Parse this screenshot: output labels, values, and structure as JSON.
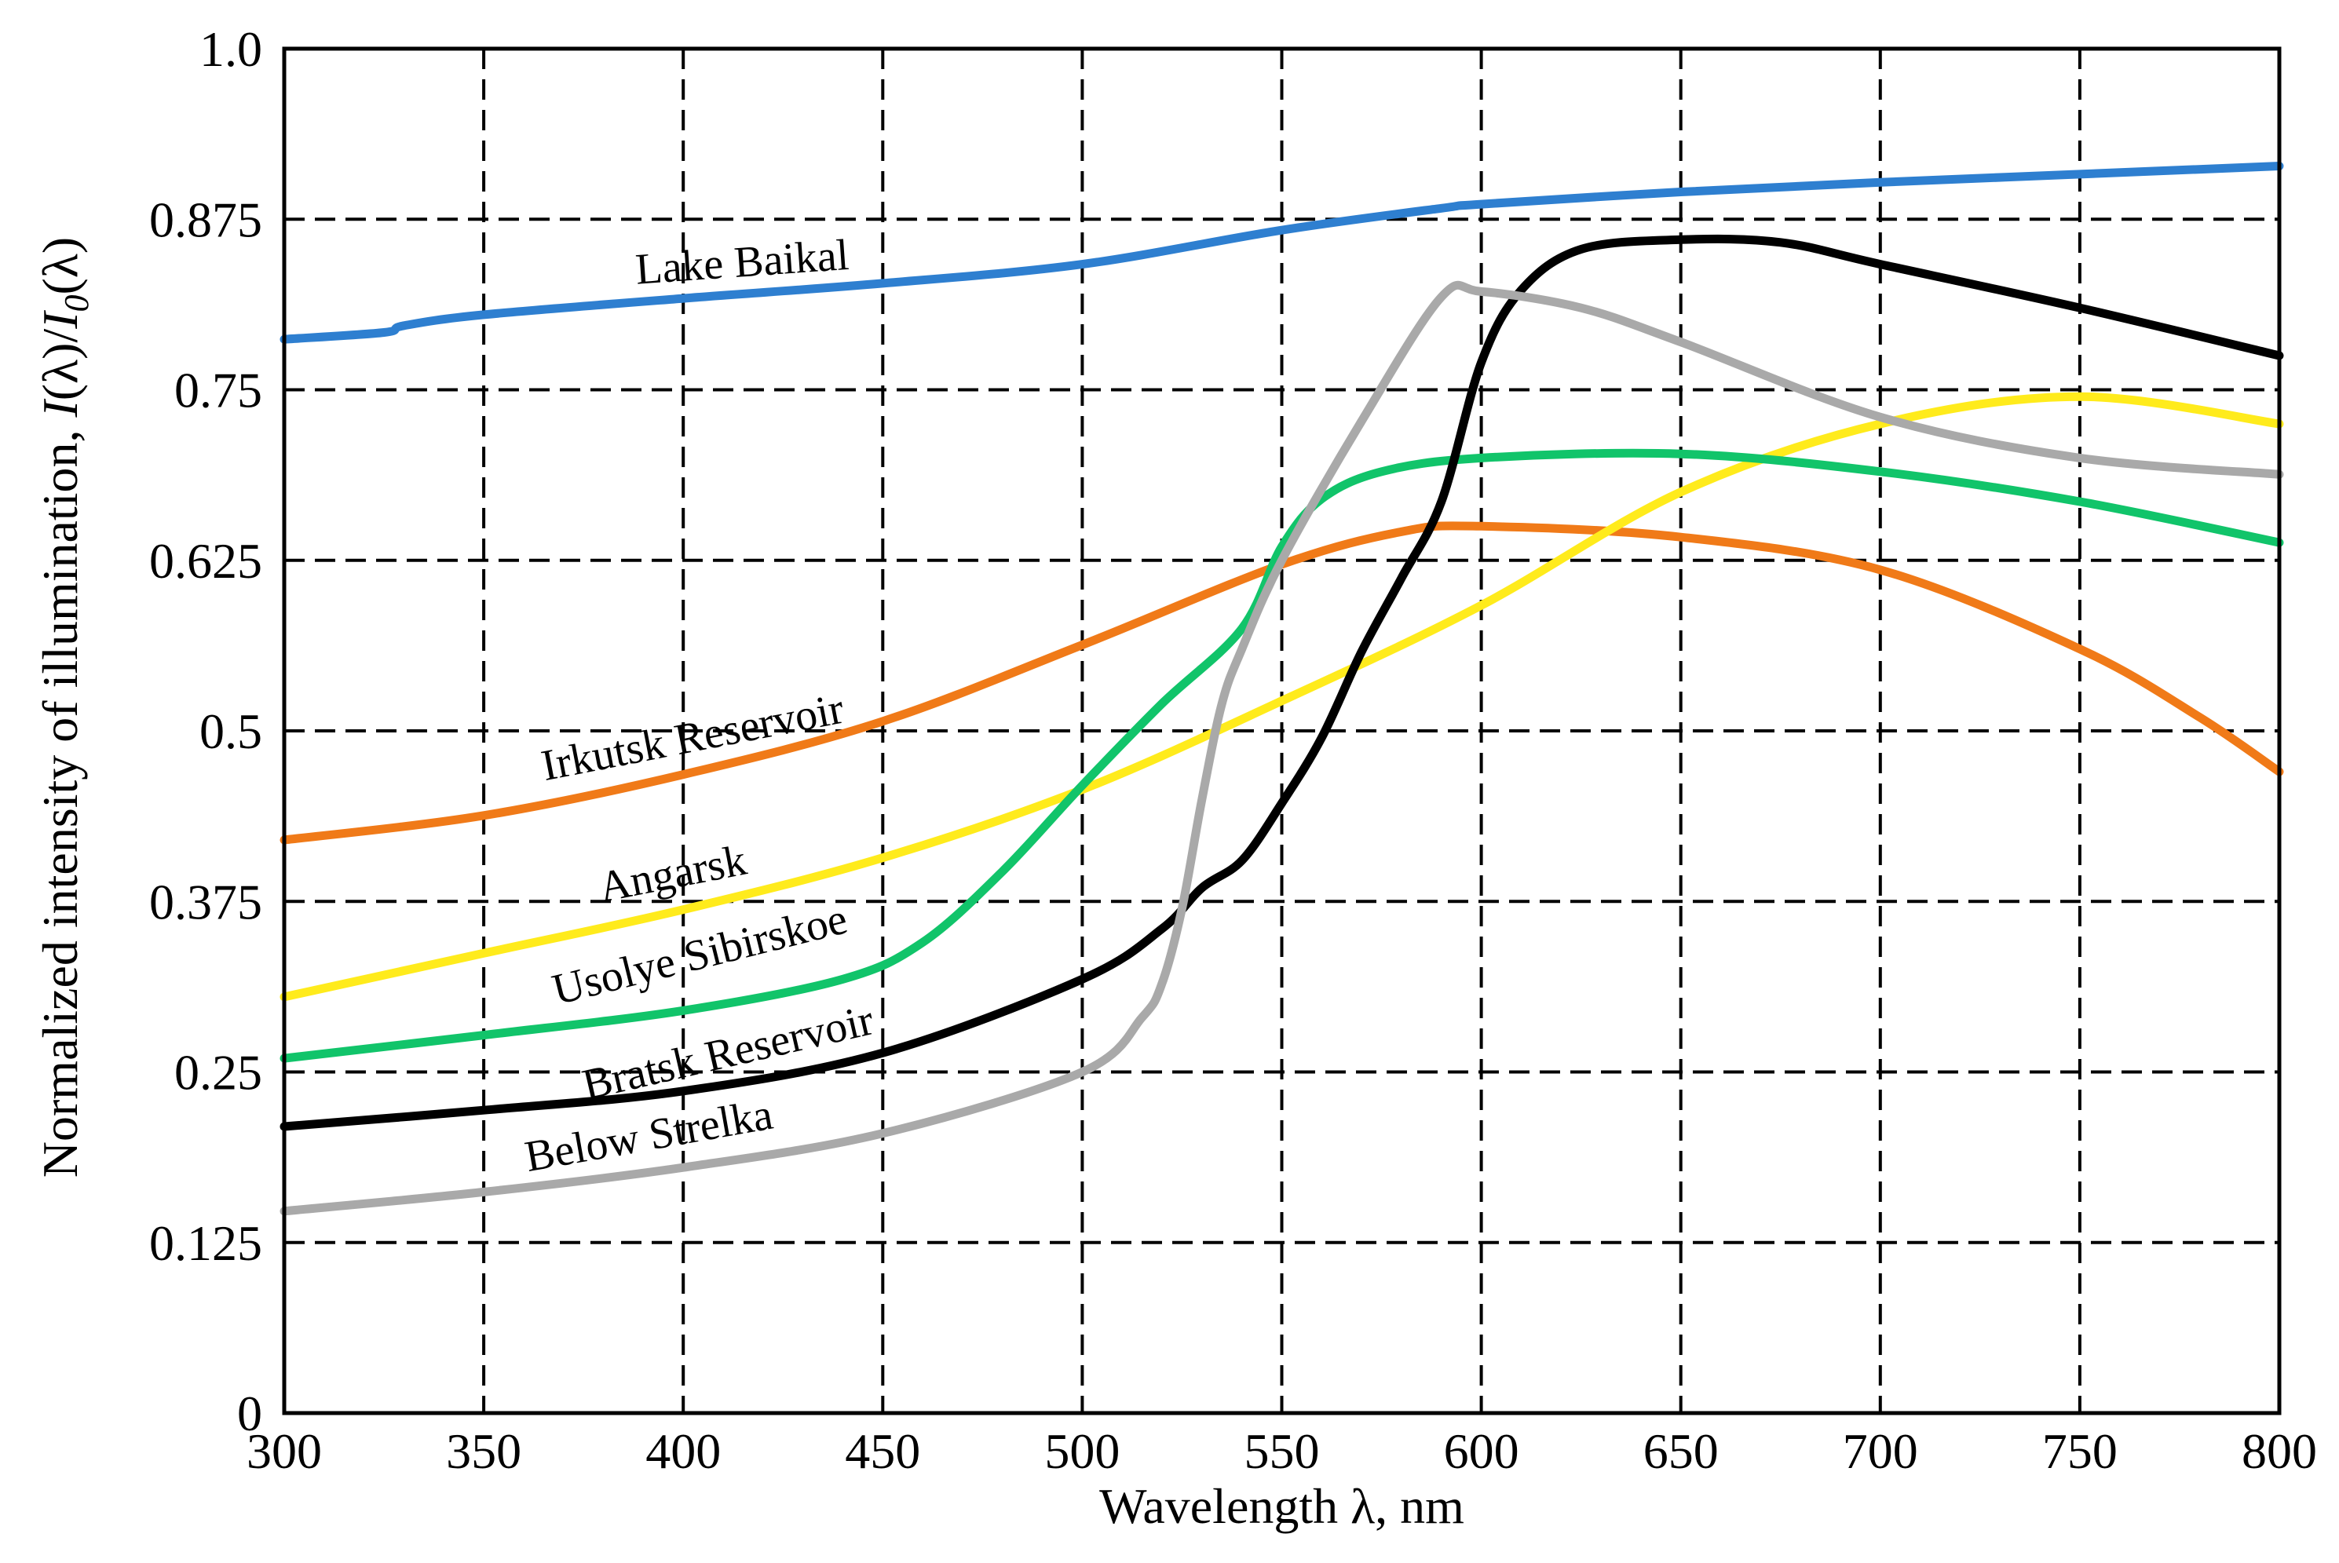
{
  "chart_data": {
    "type": "line",
    "title": "",
    "xlabel": "Wavelength λ, nm",
    "ylabel_parts": [
      "Normalized intensity of illumination, ",
      "I",
      "(λ)/",
      "I",
      "0",
      "(λ)"
    ],
    "xlim": [
      300,
      800
    ],
    "ylim": [
      0,
      1.0
    ],
    "x_ticks": [
      300,
      350,
      400,
      450,
      500,
      550,
      600,
      650,
      700,
      750,
      800
    ],
    "x_tick_labels": [
      "300",
      "350",
      "400",
      "450",
      "500",
      "550",
      "600",
      "650",
      "700",
      "750",
      "800"
    ],
    "y_ticks": [
      0,
      0.125,
      0.25,
      0.375,
      0.5,
      0.625,
      0.75,
      0.875,
      1.0
    ],
    "y_tick_labels": [
      "0",
      "0.125",
      "0.25",
      "0.375",
      "0.5",
      "0.625",
      "0.75",
      "0.875",
      "1.0"
    ],
    "grid": true,
    "series": [
      {
        "name": "Lake Baikal",
        "color": "#2e7fd0",
        "x": [
          300,
          325,
          330,
          350,
          400,
          450,
          500,
          550,
          590,
          600,
          650,
          700,
          750,
          800
        ],
        "y": [
          0.787,
          0.792,
          0.797,
          0.805,
          0.817,
          0.828,
          0.842,
          0.867,
          0.883,
          0.886,
          0.895,
          0.902,
          0.908,
          0.914
        ]
      },
      {
        "name": "Irkutsk Reservoir",
        "color": "#f07a18",
        "x": [
          300,
          350,
          400,
          450,
          500,
          550,
          580,
          600,
          650,
          700,
          750,
          780,
          800
        ],
        "y": [
          0.42,
          0.438,
          0.468,
          0.507,
          0.563,
          0.622,
          0.646,
          0.65,
          0.642,
          0.618,
          0.56,
          0.51,
          0.47
        ]
      },
      {
        "name": "Angarsk",
        "color": "#ffeb1c",
        "x": [
          300,
          350,
          400,
          450,
          500,
          550,
          600,
          650,
          700,
          750,
          800
        ],
        "y": [
          0.305,
          0.337,
          0.369,
          0.407,
          0.457,
          0.522,
          0.592,
          0.675,
          0.725,
          0.745,
          0.725
        ]
      },
      {
        "name": "Usolye Sibirskoe",
        "color": "#11c46a",
        "x": [
          300,
          350,
          400,
          440,
          460,
          480,
          500,
          520,
          540,
          550,
          560,
          575,
          600,
          650,
          700,
          750,
          800
        ],
        "y": [
          0.26,
          0.277,
          0.295,
          0.318,
          0.345,
          0.397,
          0.46,
          0.52,
          0.575,
          0.635,
          0.67,
          0.69,
          0.7,
          0.703,
          0.69,
          0.668,
          0.638
        ]
      },
      {
        "name": "Bratsk Reservoir",
        "color": "#000000",
        "x": [
          300,
          350,
          400,
          450,
          500,
          520,
          530,
          540,
          550,
          560,
          570,
          580,
          590,
          600,
          610,
          625,
          650,
          675,
          700,
          750,
          800
        ],
        "y": [
          0.21,
          0.222,
          0.236,
          0.264,
          0.318,
          0.355,
          0.385,
          0.405,
          0.447,
          0.495,
          0.558,
          0.612,
          0.668,
          0.77,
          0.823,
          0.853,
          0.86,
          0.858,
          0.842,
          0.81,
          0.775
        ]
      },
      {
        "name": "Below Strelka",
        "color": "#a9a9a9",
        "x": [
          300,
          350,
          400,
          450,
          500,
          515,
          520,
          525,
          530,
          535,
          540,
          550,
          570,
          590,
          600,
          625,
          650,
          700,
          750,
          800
        ],
        "y": [
          0.148,
          0.162,
          0.18,
          0.205,
          0.25,
          0.29,
          0.315,
          0.37,
          0.45,
          0.52,
          0.56,
          0.625,
          0.727,
          0.818,
          0.822,
          0.81,
          0.785,
          0.73,
          0.7,
          0.688
        ]
      }
    ],
    "annotations": [
      {
        "text": "Lake Baikal",
        "series": "Lake Baikal",
        "x": 415,
        "y": 0.833,
        "angle": -4
      },
      {
        "text": "Irkutsk Reservoir",
        "series": "Irkutsk Reservoir",
        "x": 403,
        "y": 0.485,
        "angle": -11
      },
      {
        "text": "Angarsk",
        "series": "Angarsk",
        "x": 398,
        "y": 0.385,
        "angle": -11
      },
      {
        "text": "Usolye Sibirskoe",
        "series": "Usolye Sibirskoe",
        "x": 405,
        "y": 0.326,
        "angle": -14
      },
      {
        "text": "Bratsk Reservoir",
        "series": "Bratsk Reservoir",
        "x": 412,
        "y": 0.254,
        "angle": -13
      },
      {
        "text": "Below Strelka",
        "series": "Below Strelka",
        "x": 392,
        "y": 0.193,
        "angle": -10
      }
    ]
  }
}
